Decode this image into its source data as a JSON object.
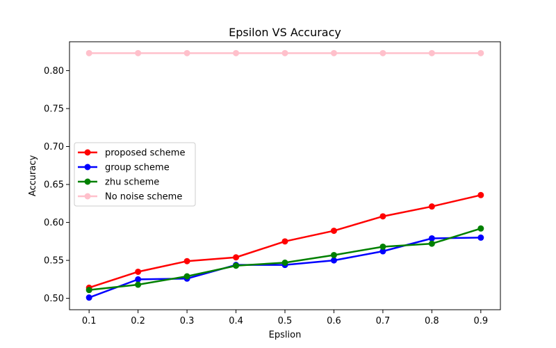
{
  "chart_data": {
    "type": "line",
    "title": "Epsilon VS Accuracy",
    "xlabel": "Epslion",
    "ylabel": "Accuracy",
    "x": [
      0.1,
      0.2,
      0.3,
      0.4,
      0.5,
      0.6,
      0.7,
      0.8,
      0.9
    ],
    "x_tick_labels": [
      "0.1",
      "0.2",
      "0.3",
      "0.4",
      "0.5",
      "0.6",
      "0.7",
      "0.8",
      "0.9"
    ],
    "xlim": [
      0.06,
      0.94
    ],
    "ylim": [
      0.485,
      0.838
    ],
    "y_ticks": [
      0.5,
      0.55,
      0.6,
      0.65,
      0.7,
      0.75,
      0.8
    ],
    "y_tick_labels": [
      "0.50",
      "0.55",
      "0.60",
      "0.65",
      "0.70",
      "0.75",
      "0.80"
    ],
    "grid": false,
    "legend_position": "center-left",
    "series": [
      {
        "name": "proposed scheme",
        "color": "#ff0000",
        "values": [
          0.514,
          0.535,
          0.549,
          0.554,
          0.575,
          0.589,
          0.608,
          0.621,
          0.636
        ]
      },
      {
        "name": "group scheme",
        "color": "#0000ff",
        "values": [
          0.501,
          0.525,
          0.526,
          0.544,
          0.544,
          0.55,
          0.562,
          0.579,
          0.58
        ]
      },
      {
        "name": "zhu scheme",
        "color": "#008000",
        "values": [
          0.511,
          0.518,
          0.529,
          0.543,
          0.547,
          0.557,
          0.568,
          0.572,
          0.592
        ]
      },
      {
        "name": "No noise scheme",
        "color": "#ffc0cb",
        "values": [
          0.823,
          0.823,
          0.823,
          0.823,
          0.823,
          0.823,
          0.823,
          0.823,
          0.823
        ]
      }
    ]
  }
}
